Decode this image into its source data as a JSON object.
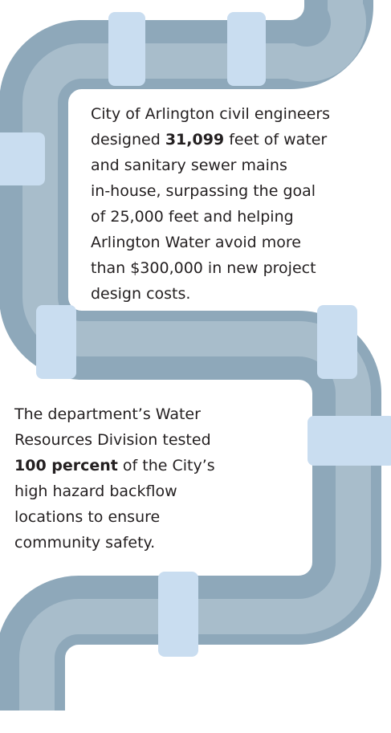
{
  "paragraphs": [
    {
      "lines": [
        [
          {
            "text": "City of Arlington civil engineers"
          }
        ],
        [
          {
            "text": "designed "
          },
          {
            "text": "31,099",
            "bold": true
          },
          {
            "text": " feet of water"
          }
        ],
        [
          {
            "text": "and sanitary sewer mains"
          }
        ],
        [
          {
            "text": "in-house, surpassing the goal"
          }
        ],
        [
          {
            "text": "of 25,000 feet and helping"
          }
        ],
        [
          {
            "text": "Arlington Water avoid more"
          }
        ],
        [
          {
            "text": "than $300,000 in new project"
          }
        ],
        [
          {
            "text": "design costs."
          }
        ]
      ]
    },
    {
      "lines": [
        [
          {
            "text": "The department’s Water"
          }
        ],
        [
          {
            "text": "Resources Division tested"
          }
        ],
        [
          {
            "text": "100 percent",
            "bold": true
          },
          {
            "text": " of the City’s"
          }
        ],
        [
          {
            "text": "high hazard backflow"
          }
        ],
        [
          {
            "text": "locations to ensure"
          }
        ],
        [
          {
            "text": "community safety."
          }
        ]
      ]
    }
  ]
}
